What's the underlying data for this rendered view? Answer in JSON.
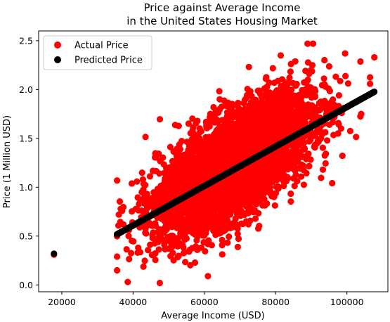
{
  "chart_data": {
    "type": "scatter",
    "title_line1": "Price against Average Income",
    "title_line2": "in the United States Housing Market",
    "xlabel": "Average Income (USD)",
    "ylabel": "Price (1 Million USD)",
    "xlim": [
      13500,
      111500
    ],
    "ylim": [
      -0.07,
      2.6
    ],
    "xticks": [
      20000,
      40000,
      60000,
      80000,
      100000
    ],
    "xtick_labels": [
      "20000",
      "40000",
      "60000",
      "80000",
      "100000"
    ],
    "yticks": [
      0.0,
      0.5,
      1.0,
      1.5,
      2.0,
      2.5
    ],
    "ytick_labels": [
      "0.0",
      "0.5",
      "1.0",
      "1.5",
      "2.0",
      "2.5"
    ],
    "grid": false,
    "legend_position": "top-left",
    "series": [
      {
        "name": "Actual Price",
        "color": "#ff0000",
        "distribution": {
          "count": 5000,
          "x_mean": 68600,
          "x_std": 10650,
          "y_intercept": -0.22,
          "y_slope_per_usd": 2.12e-05,
          "y_residual_std": 0.255
        },
        "notable_points": [
          {
            "x": 17797,
            "y": 0.31
          },
          {
            "x": 107700,
            "y": 2.33
          },
          {
            "x": 90500,
            "y": 2.47
          },
          {
            "x": 47500,
            "y": 0.02
          },
          {
            "x": 38500,
            "y": 0.03
          },
          {
            "x": 61000,
            "y": 0.09
          },
          {
            "x": 99500,
            "y": 2.37
          },
          {
            "x": 104000,
            "y": 1.75
          },
          {
            "x": 36000,
            "y": 0.72
          }
        ]
      },
      {
        "name": "Predicted Price",
        "color": "#000000",
        "regression_line": {
          "intercept": -0.1994,
          "slope_per_usd": 2.021e-05
        },
        "x_range_main": [
          35500,
          107700
        ],
        "notable_points": [
          {
            "x": 17797,
            "y": 0.32
          }
        ]
      }
    ]
  }
}
